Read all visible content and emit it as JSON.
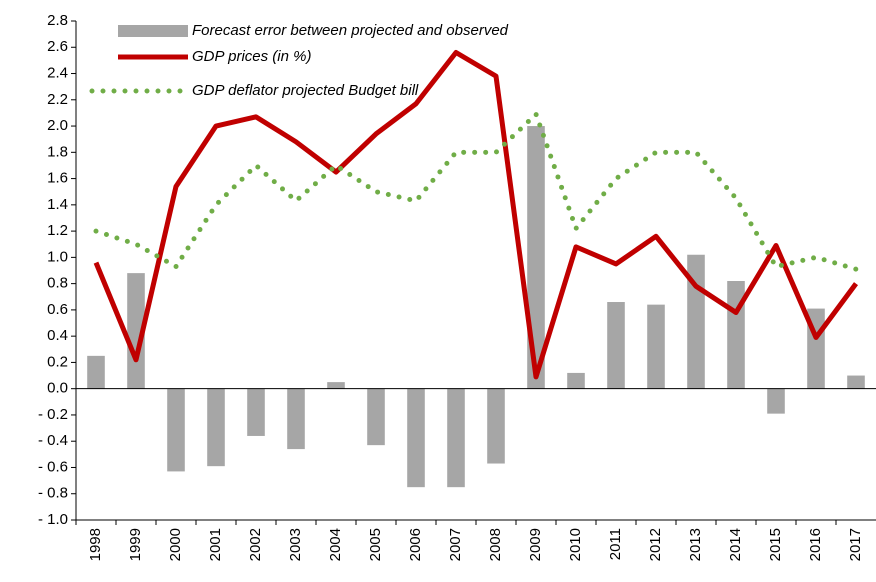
{
  "chart_data": {
    "type": "combo",
    "categories": [
      "1998",
      "1999",
      "2000",
      "2001",
      "2002",
      "2003",
      "2004",
      "2005",
      "2006",
      "2007",
      "2008",
      "2009",
      "2010",
      "2011",
      "2012",
      "2013",
      "2014",
      "2015",
      "2016",
      "2017"
    ],
    "series": [
      {
        "name": "Forecast error between projected and observed",
        "type": "bar",
        "color": "#a6a6a6",
        "values": [
          0.25,
          0.88,
          -0.63,
          -0.59,
          -0.36,
          -0.46,
          0.05,
          -0.43,
          -0.75,
          -0.75,
          -0.57,
          2.0,
          0.12,
          0.66,
          0.64,
          1.02,
          0.82,
          -0.19,
          0.61,
          0.1
        ]
      },
      {
        "name": "GDP prices (in %)",
        "type": "line",
        "style": "solid",
        "color": "#c00000",
        "values": [
          0.96,
          0.22,
          1.54,
          2.0,
          2.07,
          1.88,
          1.65,
          1.94,
          2.17,
          2.56,
          2.38,
          0.09,
          1.08,
          0.95,
          1.16,
          0.78,
          0.58,
          1.09,
          0.39,
          0.8
        ]
      },
      {
        "name": "GDP deflator projected Budget bill",
        "type": "line",
        "style": "dotted",
        "color": "#70ad47",
        "values": [
          1.2,
          1.1,
          0.93,
          1.4,
          1.7,
          1.43,
          1.7,
          1.5,
          1.43,
          1.8,
          1.8,
          2.09,
          1.22,
          1.6,
          1.8,
          1.8,
          1.45,
          0.93,
          1.0,
          0.91
        ]
      }
    ],
    "ylim": [
      -1.0,
      2.8
    ],
    "yticks": [
      2.8,
      2.6,
      2.4,
      2.2,
      {
        "value": 2.0,
        "label": "2.0"
      },
      1.8,
      1.6,
      1.4,
      1.2,
      {
        "value": 1.0,
        "label": "1.0"
      },
      0.8,
      0.6,
      0.4,
      0.2,
      {
        "value": 0.0,
        "label": "0.0"
      },
      {
        "value": -0.2,
        "label": "- 0.2"
      },
      {
        "value": -0.4,
        "label": "- 0.4"
      },
      {
        "value": -0.6,
        "label": "- 0.6"
      },
      {
        "value": -0.8,
        "label": "- 0.8"
      },
      {
        "value": -1.0,
        "label": "- 1.0"
      }
    ],
    "grid": false,
    "legend": "top-left"
  }
}
